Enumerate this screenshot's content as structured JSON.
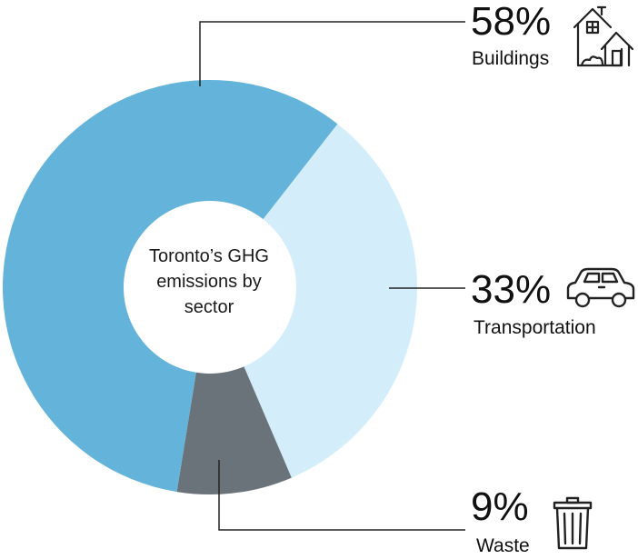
{
  "chart_data": {
    "type": "pie",
    "title": "Toronto's GHG emissions by sector",
    "categories": [
      "Buildings",
      "Transportation",
      "Waste"
    ],
    "values": [
      58,
      33,
      9
    ],
    "colors": [
      "#63B3DA",
      "#D3EEFA",
      "#6B737A"
    ],
    "labels": {
      "buildings_pct": "58%",
      "buildings": "Buildings",
      "transportation_pct": "33%",
      "transportation": "Transportation",
      "waste_pct": "9%",
      "waste": "Waste"
    },
    "icons": [
      "house-icon",
      "car-icon",
      "trash-can-icon"
    ]
  },
  "center_text": {
    "line1": "Toronto’s GHG",
    "line2": "emissions by",
    "line3": "sector"
  }
}
